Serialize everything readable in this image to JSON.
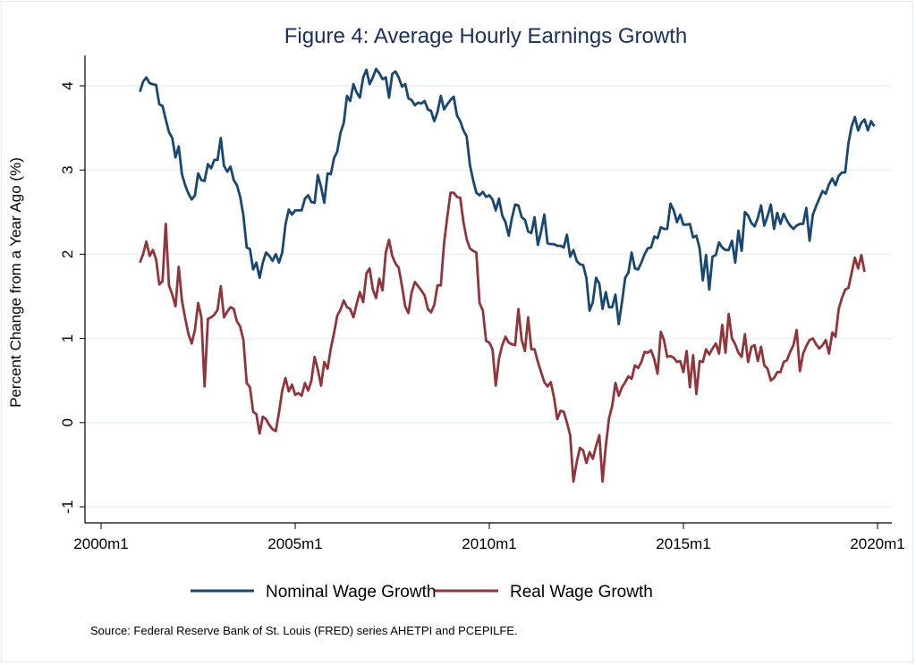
{
  "chart_data": {
    "type": "line",
    "title": "Figure 4: Average Hourly Earnings Growth",
    "xlabel": "",
    "ylabel": "Percent Change from a Year Ago (%)",
    "x_start": "2001m1",
    "x_end": "2019m5",
    "frequency": "monthly",
    "xlim": [
      "2000m1",
      "2020m1"
    ],
    "ylim": [
      -1,
      4
    ],
    "x_ticks": [
      "2000m1",
      "2005m1",
      "2010m1",
      "2015m1",
      "2020m1"
    ],
    "y_ticks": [
      "-1",
      "0",
      "1",
      "2",
      "3",
      "4"
    ],
    "grid": true,
    "legend_position": "bottom",
    "note": "Source: Federal Reserve Bank of St. Louis (FRED) series AHETPI and PCEPILFE.",
    "series": [
      {
        "name": "Nominal Wage Growth",
        "color": "#1a476f",
        "values": [
          3.93,
          4.05,
          4.1,
          4.03,
          4.02,
          4.01,
          3.78,
          3.76,
          3.6,
          3.45,
          3.38,
          3.15,
          3.28,
          2.95,
          2.82,
          2.72,
          2.65,
          2.7,
          2.96,
          2.88,
          2.87,
          3.07,
          3.02,
          3.12,
          3.12,
          3.38,
          3.05,
          2.98,
          3.04,
          2.88,
          2.82,
          2.68,
          2.46,
          2.08,
          2.06,
          1.82,
          1.9,
          1.72,
          1.9,
          2.02,
          1.98,
          1.92,
          2.0,
          1.9,
          2.02,
          2.35,
          2.53,
          2.47,
          2.52,
          2.52,
          2.52,
          2.66,
          2.7,
          2.62,
          2.61,
          2.94,
          2.8,
          2.61,
          2.96,
          2.95,
          3.14,
          3.22,
          3.44,
          3.56,
          3.88,
          3.82,
          4.02,
          3.92,
          3.86,
          4.1,
          4.19,
          4.02,
          4.1,
          4.2,
          4.15,
          4.08,
          4.1,
          3.86,
          4.14,
          4.17,
          4.1,
          3.99,
          4.02,
          3.85,
          3.83,
          3.77,
          3.8,
          3.79,
          3.82,
          3.72,
          3.7,
          3.58,
          3.69,
          3.88,
          3.72,
          3.78,
          3.83,
          3.87,
          3.65,
          3.58,
          3.47,
          3.4,
          3.06,
          2.88,
          2.73,
          2.7,
          2.74,
          2.68,
          2.7,
          2.65,
          2.52,
          2.66,
          2.46,
          2.38,
          2.22,
          2.43,
          2.59,
          2.58,
          2.44,
          2.41,
          2.27,
          2.25,
          2.44,
          2.11,
          2.27,
          2.47,
          2.13,
          2.12,
          2.12,
          2.1,
          2.1,
          2.08,
          2.23,
          1.97,
          2.05,
          1.92,
          1.88,
          1.87,
          1.72,
          1.33,
          1.43,
          1.72,
          1.65,
          1.35,
          1.55,
          1.37,
          1.37,
          1.52,
          1.17,
          1.43,
          1.72,
          1.78,
          2.02,
          1.83,
          1.82,
          1.9,
          2.0,
          2.07,
          2.08,
          2.21,
          2.19,
          2.32,
          2.3,
          2.3,
          2.6,
          2.52,
          2.38,
          2.47,
          2.35,
          2.35,
          2.36,
          2.2,
          2.22,
          2.07,
          1.69,
          1.99,
          1.58,
          1.97,
          1.99,
          2.14,
          2.08,
          2.05,
          2.05,
          2.16,
          1.9,
          2.28,
          2.04,
          2.5,
          2.46,
          2.37,
          2.33,
          2.43,
          2.58,
          2.34,
          2.45,
          2.59,
          2.3,
          2.49,
          2.36,
          2.48,
          2.4,
          2.34,
          2.3,
          2.34,
          2.36,
          2.36,
          2.55,
          2.16,
          2.47,
          2.57,
          2.66,
          2.75,
          2.72,
          2.83,
          2.9,
          2.82,
          2.93,
          2.97,
          2.97,
          3.32,
          3.52,
          3.63,
          3.47,
          3.56,
          3.6,
          3.47,
          3.58,
          3.52
        ]
      },
      {
        "name": "Real Wage Growth",
        "color": "#90353b",
        "values": [
          1.9,
          2.0,
          2.15,
          1.98,
          2.05,
          1.94,
          1.64,
          1.68,
          2.36,
          1.63,
          1.52,
          1.38,
          1.85,
          1.45,
          1.24,
          1.05,
          0.94,
          1.1,
          1.42,
          1.25,
          0.43,
          1.23,
          1.25,
          1.28,
          1.34,
          1.62,
          1.25,
          1.32,
          1.37,
          1.35,
          1.2,
          1.14,
          0.98,
          0.47,
          0.42,
          0.13,
          0.1,
          -0.13,
          0.07,
          0.04,
          -0.03,
          -0.08,
          -0.1,
          0.12,
          0.38,
          0.53,
          0.37,
          0.45,
          0.33,
          0.35,
          0.32,
          0.47,
          0.38,
          0.5,
          0.78,
          0.63,
          0.44,
          0.72,
          0.64,
          0.88,
          1.06,
          1.27,
          1.34,
          1.45,
          1.37,
          1.35,
          1.25,
          1.41,
          1.55,
          1.43,
          1.77,
          1.83,
          1.58,
          1.48,
          1.71,
          1.57,
          2.02,
          2.17,
          1.98,
          1.89,
          1.84,
          1.62,
          1.38,
          1.3,
          1.55,
          1.67,
          1.62,
          1.57,
          1.51,
          1.35,
          1.31,
          1.4,
          1.63,
          1.63,
          2.13,
          2.44,
          2.73,
          2.73,
          2.68,
          2.67,
          2.38,
          2.18,
          2.07,
          2.04,
          2.02,
          1.42,
          1.33,
          0.97,
          0.95,
          0.87,
          0.44,
          0.76,
          0.92,
          1.02,
          0.95,
          0.93,
          0.92,
          1.35,
          0.98,
          0.85,
          1.25,
          0.87,
          0.87,
          0.72,
          0.6,
          0.48,
          0.43,
          0.48,
          0.3,
          0.04,
          0.14,
          0.13,
          0.0,
          -0.15,
          -0.7,
          -0.47,
          -0.3,
          -0.33,
          -0.48,
          -0.35,
          -0.43,
          -0.28,
          -0.15,
          -0.7,
          -0.28,
          0.05,
          0.2,
          0.47,
          0.32,
          0.42,
          0.48,
          0.55,
          0.52,
          0.68,
          0.65,
          0.72,
          0.84,
          0.83,
          0.86,
          0.75,
          0.58,
          1.08,
          0.98,
          0.78,
          0.79,
          0.77,
          0.72,
          0.73,
          0.6,
          0.85,
          0.42,
          0.8,
          0.34,
          0.73,
          0.72,
          0.87,
          0.81,
          0.88,
          0.94,
          0.82,
          1.16,
          0.83,
          1.29,
          1.0,
          0.93,
          0.83,
          0.78,
          1.05,
          0.72,
          0.9,
          0.92,
          0.73,
          0.9,
          0.68,
          0.64,
          0.5,
          0.53,
          0.6,
          0.6,
          0.72,
          0.74,
          0.84,
          0.92,
          1.1,
          0.61,
          0.82,
          0.91,
          0.98,
          1.0,
          0.93,
          0.88,
          0.92,
          0.98,
          0.82,
          1.07,
          1.02,
          1.35,
          1.48,
          1.58,
          1.6,
          1.78,
          1.96,
          1.83,
          1.99,
          1.79
        ]
      }
    ]
  }
}
